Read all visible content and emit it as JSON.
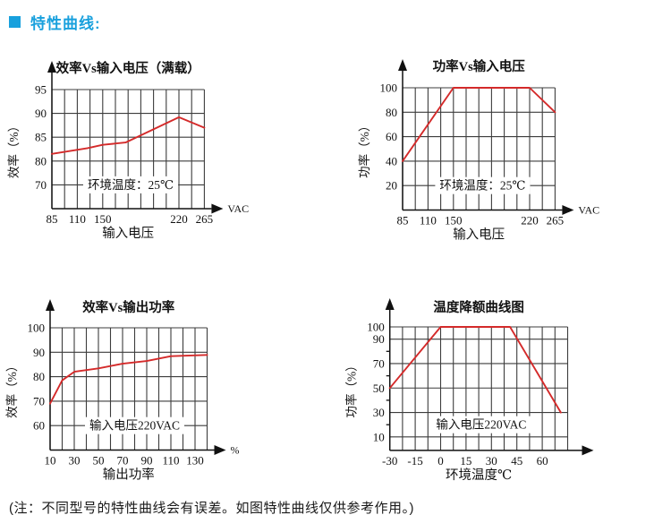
{
  "header": {
    "title": "特性曲线:"
  },
  "note": "(注：不同型号的特性曲线会有误差。如图特性曲线仅供参考作用。)",
  "colors": {
    "accent": "#18a0dd",
    "curve": "#d42a2a",
    "grid": "#3c3c3c",
    "ink": "#111111"
  },
  "chart_data": [
    {
      "type": "line",
      "title": "效率Vs输入电压（满载）",
      "xlabel": "输入电压",
      "ylabel": "效率（%）",
      "x_unit": "VAC",
      "annotation": "环境温度：25℃",
      "annotation_pos": {
        "col": 6.2,
        "row": 4
      },
      "cols": 12,
      "rows": 5,
      "x_ticks": [
        {
          "v": 85,
          "col": 0
        },
        {
          "v": 110,
          "col": 2
        },
        {
          "v": 150,
          "col": 4
        },
        {
          "v": 220,
          "col": 10
        },
        {
          "v": 265,
          "col": 12
        }
      ],
      "y_ticks": [
        {
          "v": 95,
          "row": 0
        },
        {
          "v": 90,
          "row": 1
        },
        {
          "v": 85,
          "row": 2
        },
        {
          "v": 80,
          "row": 3
        },
        {
          "v": 70,
          "row": 4
        }
      ],
      "y_minor_rows": [],
      "xlim": [
        85,
        265
      ],
      "ylim": [
        60,
        95
      ],
      "series": [
        {
          "name": "效率",
          "points": [
            [
              85,
              81.5
            ],
            [
              126,
              82.7
            ],
            [
              150,
              83.4
            ],
            [
              171,
              83.9
            ],
            [
              220,
              89.2
            ],
            [
              265,
              87
            ]
          ]
        }
      ]
    },
    {
      "type": "line",
      "title": "功率Vs输入电压",
      "xlabel": "输入电压",
      "ylabel": "功率（%）",
      "x_unit": "VAC",
      "annotation": "环境温度：25℃",
      "annotation_pos": {
        "col": 6.3,
        "row": 4
      },
      "cols": 12,
      "rows": 5,
      "x_ticks": [
        {
          "v": 85,
          "col": 0
        },
        {
          "v": 110,
          "col": 2
        },
        {
          "v": 150,
          "col": 4
        },
        {
          "v": 220,
          "col": 10
        },
        {
          "v": 265,
          "col": 12
        }
      ],
      "y_ticks": [
        {
          "v": 100,
          "row": 0
        },
        {
          "v": 80,
          "row": 1
        },
        {
          "v": 60,
          "row": 2
        },
        {
          "v": 40,
          "row": 3
        },
        {
          "v": 20,
          "row": 4
        }
      ],
      "y_minor_rows": [],
      "xlim": [
        85,
        265
      ],
      "ylim": [
        0,
        100
      ],
      "series": [
        {
          "name": "功率",
          "points": [
            [
              85,
              40
            ],
            [
              150,
              100
            ],
            [
              220,
              100
            ],
            [
              265,
              80
            ]
          ]
        }
      ]
    },
    {
      "type": "line",
      "title": "效率Vs输出功率",
      "xlabel": "输出功率",
      "ylabel": "效率（%）",
      "x_unit": "%",
      "annotation": "输入电压220VAC",
      "annotation_pos": {
        "col": 7,
        "row": 4
      },
      "cols": 13,
      "rows": 5,
      "x_ticks": [
        {
          "v": 10,
          "col": 0
        },
        {
          "v": 30,
          "col": 2
        },
        {
          "v": 50,
          "col": 4
        },
        {
          "v": 70,
          "col": 6
        },
        {
          "v": 90,
          "col": 8
        },
        {
          "v": 110,
          "col": 10
        },
        {
          "v": 130,
          "col": 12
        }
      ],
      "y_ticks": [
        {
          "v": 100,
          "row": 0
        },
        {
          "v": 90,
          "row": 1
        },
        {
          "v": 80,
          "row": 2
        },
        {
          "v": 70,
          "row": 3
        },
        {
          "v": 60,
          "row": 4
        }
      ],
      "y_minor_rows": [],
      "xlim": [
        10,
        140
      ],
      "ylim": [
        50,
        100
      ],
      "series": [
        {
          "name": "效率",
          "points": [
            [
              10,
              69
            ],
            [
              20,
              78.5
            ],
            [
              30,
              82
            ],
            [
              50,
              83.4
            ],
            [
              70,
              85.3
            ],
            [
              90,
              86.4
            ],
            [
              110,
              88.4
            ],
            [
              140,
              88.9
            ]
          ]
        }
      ]
    },
    {
      "type": "line",
      "title": "温度降额曲线图",
      "xlabel": "环境温度℃",
      "ylabel": "功率（%）",
      "x_unit": "",
      "annotation": "输入电压220VAC",
      "annotation_pos": {
        "col": 7.2,
        "row": 4
      },
      "cols": 14,
      "rows": 5.05,
      "x_ticks": [
        {
          "v": -30,
          "col": 0
        },
        {
          "v": -15,
          "col": 2
        },
        {
          "v": 0,
          "col": 4
        },
        {
          "v": 15,
          "col": 6
        },
        {
          "v": 30,
          "col": 8
        },
        {
          "v": 45,
          "col": 10
        },
        {
          "v": 60,
          "col": 12
        }
      ],
      "y_ticks": [
        {
          "v": 100,
          "row": 0
        },
        {
          "v": 90,
          "row": 0.5
        },
        {
          "v": 70,
          "row": 1.5
        },
        {
          "v": 50,
          "row": 2.5
        },
        {
          "v": 30,
          "row": 3.5
        },
        {
          "v": 10,
          "row": 4.5
        }
      ],
      "y_minor_rows": [
        1,
        2,
        3,
        4
      ],
      "xlim": [
        -30,
        75
      ],
      "ylim": [
        0,
        100
      ],
      "series": [
        {
          "name": "功率",
          "points": [
            [
              -30,
              50
            ],
            [
              0,
              100
            ],
            [
              41,
              100
            ],
            [
              71,
              30
            ]
          ]
        }
      ]
    }
  ]
}
